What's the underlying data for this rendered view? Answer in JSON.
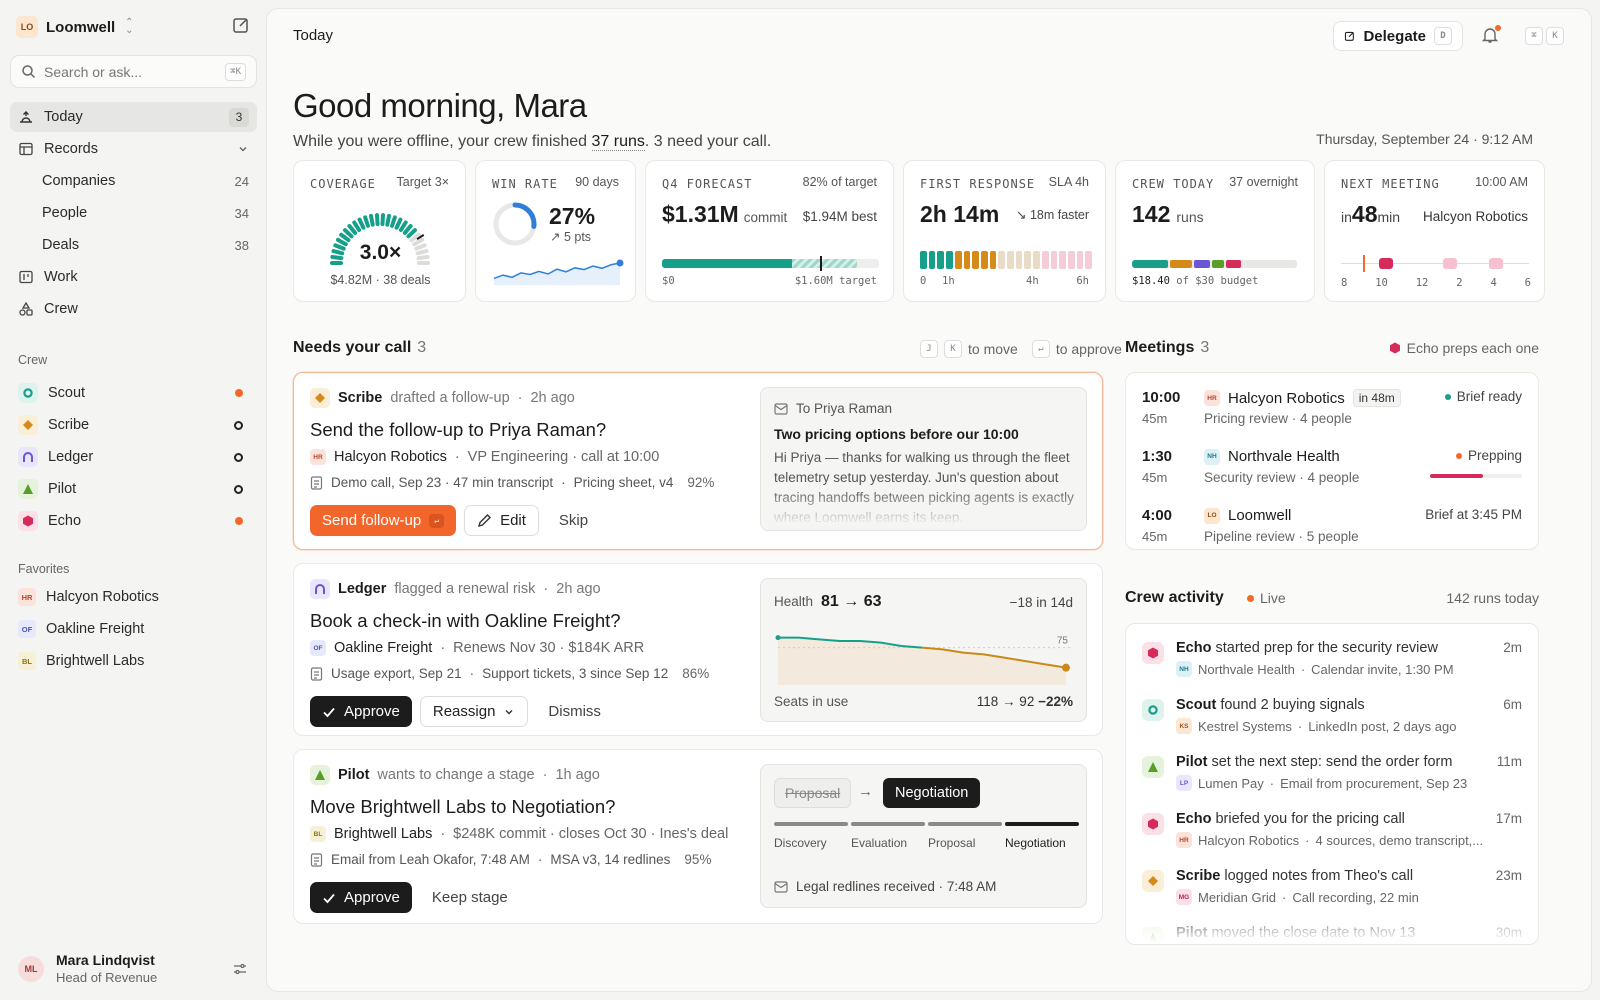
{
  "workspace": {
    "logo": "LO",
    "name": "Loomwell"
  },
  "search": {
    "placeholder": "Search or ask...",
    "shortcut": "⌘K"
  },
  "nav": {
    "today": {
      "label": "Today",
      "count": "3"
    },
    "records": {
      "label": "Records"
    },
    "companies": {
      "label": "Companies",
      "count": "24"
    },
    "people": {
      "label": "People",
      "count": "34"
    },
    "deals": {
      "label": "Deals",
      "count": "38"
    },
    "work": {
      "label": "Work"
    },
    "crew": {
      "label": "Crew"
    }
  },
  "crew_section": {
    "title": "Crew",
    "agents": [
      {
        "name": "Scout",
        "color": "#1a9e8a",
        "bg": "#dff3ee",
        "status": "active"
      },
      {
        "name": "Scribe",
        "color": "#d68a1a",
        "bg": "#fbeed6",
        "status": "idle"
      },
      {
        "name": "Ledger",
        "color": "#6b55d6",
        "bg": "#e9e5fb",
        "status": "idle"
      },
      {
        "name": "Pilot",
        "color": "#5a9e2a",
        "bg": "#e6f3dc",
        "status": "idle"
      },
      {
        "name": "Echo",
        "color": "#d62a5a",
        "bg": "#fbe0e8",
        "status": "active"
      }
    ]
  },
  "favorites": {
    "title": "Favorites",
    "items": [
      {
        "abbr": "HR",
        "name": "Halcyon Robotics",
        "bg": "#fbe3dc",
        "fg": "#b5452a"
      },
      {
        "abbr": "OF",
        "name": "Oakline Freight",
        "bg": "#e6e8fb",
        "fg": "#4a55b5"
      },
      {
        "abbr": "BL",
        "name": "Brightwell Labs",
        "bg": "#f6f0d6",
        "fg": "#8a7512"
      }
    ]
  },
  "user": {
    "initials": "ML",
    "name": "Mara Lindqvist",
    "role": "Head of Revenue"
  },
  "topbar": {
    "title": "Today",
    "delegate": "Delegate",
    "delegate_key": "D",
    "cmd1": "⌘",
    "cmd2": "K"
  },
  "greeting": {
    "title": "Good morning, Mara",
    "sub_a": "While you were offline, your crew finished ",
    "runs": "37 runs",
    "sub_b": ". 3 need your call.",
    "date": "Thursday, September 24 · 9:12 AM"
  },
  "stats": {
    "coverage": {
      "label": "COVERAGE",
      "right": "Target 3×",
      "value": "3.0×",
      "sub": "$4.82M · 38 deals",
      "gauge_fraction": 0.78
    },
    "winrate": {
      "label": "WIN RATE",
      "right": "90 days",
      "value": "27%",
      "delta": "5 pts",
      "ring_fraction": 0.27,
      "trend": [
        0.3,
        0.45,
        0.35,
        0.55,
        0.48,
        0.62,
        0.5,
        0.72,
        0.6,
        0.78,
        0.7,
        0.86,
        0.76,
        0.92,
        1.0
      ]
    },
    "forecast": {
      "label": "Q4 FORECAST",
      "right": "82% of target",
      "value": "$1.31M",
      "value_sfx": "commit",
      "best": "$1.94M best",
      "commit_fraction": 0.6,
      "best_fraction": 0.9,
      "target_fraction": 0.73,
      "axis0": "$0",
      "axis1": "$1.60M target"
    },
    "response": {
      "label": "FIRST RESPONSE",
      "right": "SLA 4h",
      "value": "2h 14m",
      "delta": "18m faster",
      "ticks": [
        "0",
        "1h",
        "4h",
        "6h"
      ]
    },
    "crewtoday": {
      "label": "CREW TODAY",
      "right": "37 overnight",
      "value": "142",
      "value_sfx": "runs",
      "budget_a": "$18.40",
      "budget_b": " of $30 budget",
      "segments": [
        {
          "color": "#1a9e8a",
          "share": 0.22
        },
        {
          "color": "#d68a1a",
          "share": 0.13
        },
        {
          "color": "#6b55d6",
          "share": 0.1
        },
        {
          "color": "#5a9e2a",
          "share": 0.07
        },
        {
          "color": "#d62a5a",
          "share": 0.09
        }
      ]
    },
    "nextmeeting": {
      "label": "NEXT MEETING",
      "right": "10:00 AM",
      "pre": "in ",
      "value": "48",
      "suffix": " min",
      "company": "Halcyon Robotics",
      "ticks": [
        "8",
        "10",
        "12",
        "2",
        "4",
        "6"
      ]
    }
  },
  "needs": {
    "title": "Needs your call",
    "count": "3",
    "hint_k1": "J",
    "hint_k2": "K",
    "hint_move": "to move",
    "hint_k3": "↵",
    "hint_approve": "to approve"
  },
  "card1": {
    "agent": "Scribe",
    "action": "drafted a follow-up",
    "time": "2h ago",
    "title": "Send the follow-up to Priya Raman?",
    "co_abbr": "HR",
    "company": "Halcyon Robotics",
    "co_meta": "VP Engineering · call at 10:00",
    "src1": "Demo call, Sep 23 · 47 min transcript",
    "src2": "Pricing sheet, v4",
    "conf": "92%",
    "primary": "Send follow-up",
    "primary_key": "↵",
    "edit": "Edit",
    "skip": "Skip",
    "email_to": "To Priya Raman",
    "email_subject": "Two pricing options before our 10:00",
    "email_body": "Hi Priya — thanks for walking us through the fleet telemetry setup yesterday. Jun's question about tracing handoffs between picking agents is exactly where Loomwell earns its keep."
  },
  "card2": {
    "agent": "Ledger",
    "action": "flagged a renewal risk",
    "time": "2h ago",
    "title": "Book a check-in with Oakline Freight?",
    "co_abbr": "OF",
    "company": "Oakline Freight",
    "co_meta": "Renews Nov 30 · $184K ARR",
    "src1": "Usage export, Sep 21",
    "src2": "Support tickets, 3 since Sep 12",
    "conf": "86%",
    "primary": "Approve",
    "secondary": "Reassign",
    "tertiary": "Dismiss",
    "health_label": "Health",
    "health_value": "81 → 63",
    "health_delta": "−18 in 14d",
    "ref": "75",
    "seats_label": "Seats in use",
    "seats_value": "118 → 92",
    "seats_delta": "−22%",
    "health_trend": [
      81,
      81,
      80,
      79,
      79,
      78,
      76,
      75,
      74,
      72,
      71,
      69,
      67,
      65,
      63
    ]
  },
  "card3": {
    "agent": "Pilot",
    "action": "wants to change a stage",
    "time": "1h ago",
    "title": "Move Brightwell Labs to Negotiation?",
    "co_abbr": "BL",
    "company": "Brightwell Labs",
    "co_meta": "$248K commit · closes Oct 30 · Ines's deal",
    "src1": "Email from Leah Okafor, 7:48 AM",
    "src2": "MSA v3, 14 redlines",
    "conf": "95%",
    "primary": "Approve",
    "secondary": "Keep stage",
    "from_stage": "Proposal",
    "to_stage": "Negotiation",
    "stages": [
      "Discovery",
      "Evaluation",
      "Proposal",
      "Negotiation"
    ],
    "note": "Legal redlines received · 7:48 AM"
  },
  "meetings": {
    "title": "Meetings",
    "count": "3",
    "hint": "Echo preps each one",
    "rows": [
      {
        "time": "10:00",
        "dur": "45m",
        "abbr": "HR",
        "company": "Halcyon Robotics",
        "chip": "in 48m",
        "desc": "Pricing review · 4 people",
        "status": "Brief ready",
        "status_color": "#1a9e8a",
        "progress": null
      },
      {
        "time": "1:30",
        "dur": "45m",
        "abbr": "NH",
        "company": "Northvale Health",
        "chip": "",
        "desc": "Security review · 4 people",
        "status": "Prepping",
        "status_color": "#f26a2a",
        "progress": 0.58
      },
      {
        "time": "4:00",
        "dur": "45m",
        "abbr": "LO",
        "company": "Loomwell",
        "chip": "",
        "desc": "Pipeline review · 5 people",
        "status": "Brief at 3:45 PM",
        "status_color": "",
        "progress": null
      }
    ]
  },
  "activity": {
    "title": "Crew activity",
    "live": "Live",
    "total": "142 runs today",
    "rows": [
      {
        "agent": "Echo",
        "text": "started prep for the security review",
        "abbr": "NH",
        "company": "Northvale Health",
        "meta": "Calendar invite, 1:30 PM",
        "time": "2m"
      },
      {
        "agent": "Scout",
        "text": "found 2 buying signals",
        "abbr": "KS",
        "company": "Kestrel Systems",
        "meta": "LinkedIn post, 2 days ago",
        "time": "6m"
      },
      {
        "agent": "Pilot",
        "text": "set the next step: send the order form",
        "abbr": "LP",
        "company": "Lumen Pay",
        "meta": "Email from procurement, Sep 23",
        "time": "11m"
      },
      {
        "agent": "Echo",
        "text": "briefed you for the pricing call",
        "abbr": "HR",
        "company": "Halcyon Robotics",
        "meta": "4 sources, demo transcript,...",
        "time": "17m"
      },
      {
        "agent": "Scribe",
        "text": "logged notes from Theo's call",
        "abbr": "MG",
        "company": "Meridian Grid",
        "meta": "Call recording, 22 min",
        "time": "23m"
      },
      {
        "agent": "Pilot",
        "text": "moved the close date to Nov 13",
        "abbr": "",
        "company": "",
        "meta": "",
        "time": "30m"
      }
    ]
  }
}
